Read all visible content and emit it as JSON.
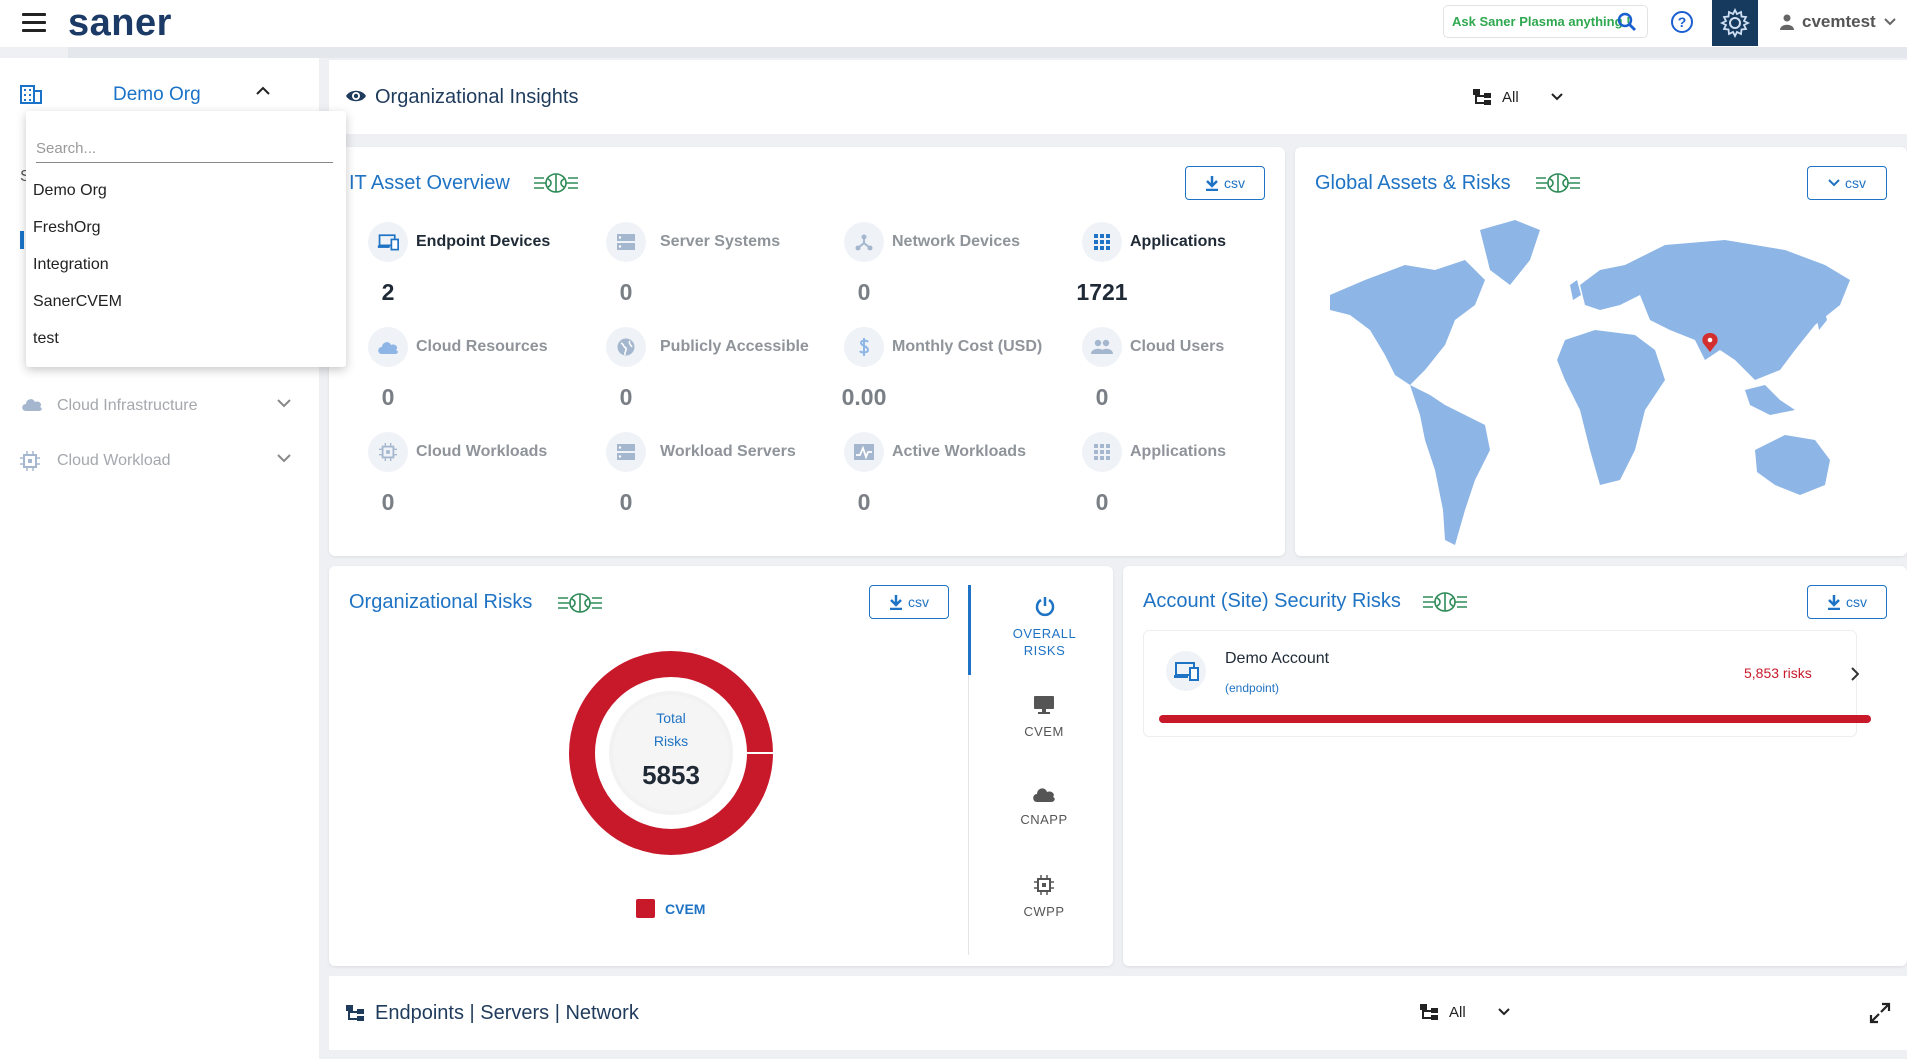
{
  "topbar": {
    "logo": "saner",
    "ask_placeholder": "Ask Saner Plasma anything !",
    "username": "cvemtest"
  },
  "sidebar": {
    "org_name": "Demo Org",
    "items": [
      {
        "label": "Cloud Infrastructure",
        "icon": "cloud-icon"
      },
      {
        "label": "Cloud Workload",
        "icon": "chip-icon"
      }
    ]
  },
  "org_dropdown": {
    "search_placeholder": "Search...",
    "options": [
      "Demo Org",
      "FreshOrg",
      "Integration",
      "SanerCVEM",
      "test"
    ]
  },
  "insights": {
    "title": "Organizational Insights",
    "filter_label": "All"
  },
  "it_assets": {
    "title": "IT Asset Overview",
    "csv_label": "csv",
    "stats": [
      {
        "label": "Endpoint Devices",
        "value": "2",
        "icon": "devices-icon"
      },
      {
        "label": "Server Systems",
        "value": "0",
        "icon": "server-icon"
      },
      {
        "label": "Network Devices",
        "value": "0",
        "icon": "network-icon"
      },
      {
        "label": "Applications",
        "value": "1721",
        "icon": "apps-grid-icon"
      },
      {
        "label": "Cloud Resources",
        "value": "0",
        "icon": "cloud-icon"
      },
      {
        "label": "Publicly Accessible",
        "value": "0",
        "icon": "globe-icon"
      },
      {
        "label": "Monthly Cost (USD)",
        "value": "0.00",
        "icon": "dollar-icon"
      },
      {
        "label": "Cloud Users",
        "value": "0",
        "icon": "users-icon"
      },
      {
        "label": "Cloud Workloads",
        "value": "0",
        "icon": "chip-icon"
      },
      {
        "label": "Workload Servers",
        "value": "0",
        "icon": "server-icon"
      },
      {
        "label": "Active Workloads",
        "value": "0",
        "icon": "activity-icon"
      },
      {
        "label": "Applications",
        "value": "0",
        "icon": "apps-grid-icon"
      }
    ]
  },
  "global_assets": {
    "title": "Global Assets & Risks",
    "csv_label": "csv"
  },
  "org_risks": {
    "title": "Organizational Risks",
    "csv_label": "csv",
    "donut_label_1": "Total",
    "donut_label_2": "Risks",
    "total": "5853",
    "legend": "CVEM",
    "series_color": "#c8192b",
    "tabs": [
      {
        "label_1": "OVERALL",
        "label_2": "RISKS"
      },
      {
        "label_1": "CVEM",
        "label_2": ""
      },
      {
        "label_1": "CNAPP",
        "label_2": ""
      },
      {
        "label_1": "CWPP",
        "label_2": ""
      }
    ]
  },
  "account_risks": {
    "title": "Account (Site) Security Risks",
    "csv_label": "csv",
    "account_name": "Demo Account",
    "account_type": "(endpoint)",
    "risk_count": "5,853 risks",
    "risk_fraction": 1.0
  },
  "endpoints": {
    "title": "Endpoints | Servers | Network",
    "filter_label": "All"
  }
}
